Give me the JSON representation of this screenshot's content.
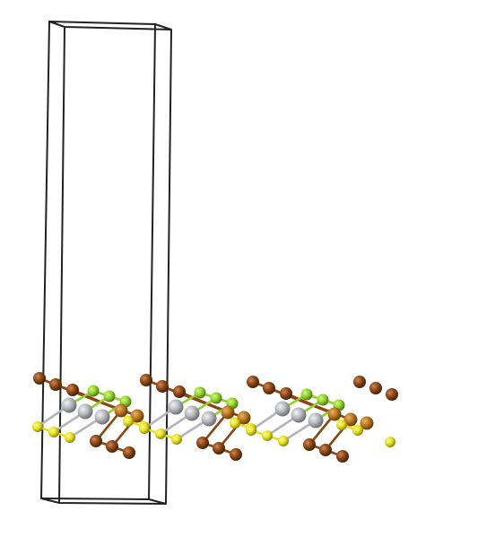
{
  "scene": {
    "background": "#ffffff",
    "cell_color": "#222222",
    "colors": {
      "brown": "#8a4513",
      "orange": "#b8731b",
      "green": "#8fd12b",
      "gray": "#b4b6bb",
      "yellow": "#e6e01c"
    },
    "icons": {
      "unit-cell": "unit-cell-icon",
      "atom": "atom-sphere-icon"
    }
  }
}
